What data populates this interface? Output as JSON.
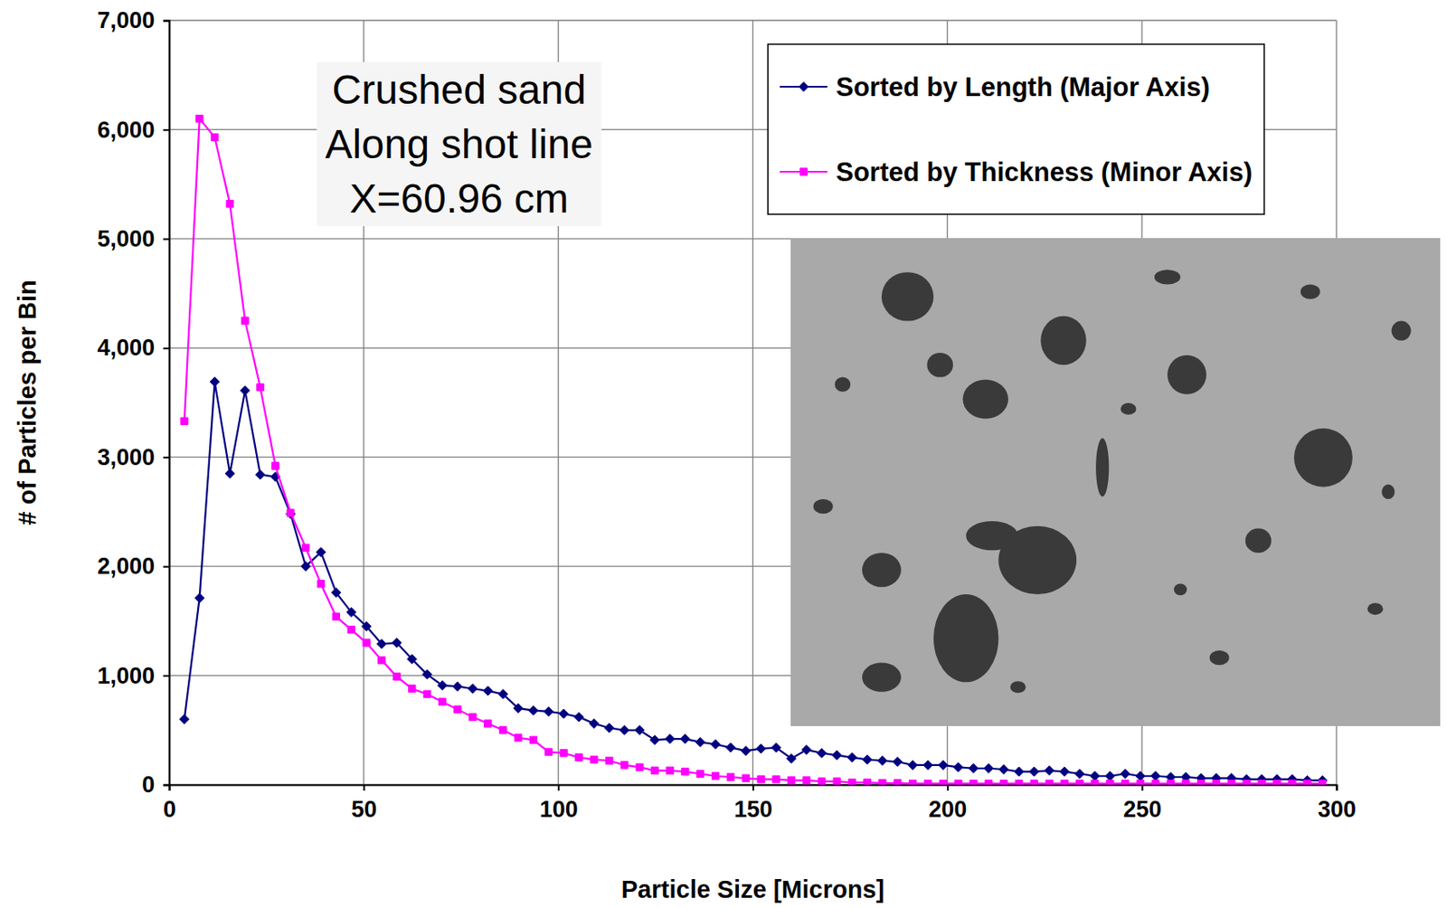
{
  "chart_data": {
    "type": "line",
    "x_label": "Particle Size [Microns]",
    "y_label": "# of Particles per Bin",
    "annotations": [
      "Crushed sand",
      "Along shot line",
      "X=60.96 cm"
    ],
    "x": [
      3.9,
      7.8,
      11.7,
      15.6,
      19.5,
      23.4,
      27.3,
      31.2,
      35.1,
      39,
      42.9,
      46.8,
      50.7,
      54.6,
      58.5,
      62.4,
      66.3,
      70.2,
      74.1,
      78,
      81.9,
      85.8,
      89.7,
      93.6,
      97.5,
      101.4,
      105.3,
      109.2,
      113.1,
      117,
      120.9,
      124.8,
      128.7,
      132.6,
      136.5,
      140.4,
      144.3,
      148.2,
      152.1,
      156,
      159.9,
      163.8,
      167.7,
      171.6,
      175.5,
      179.4,
      183.3,
      187.2,
      191.1,
      195,
      198.9,
      202.8,
      206.7,
      210.6,
      214.5,
      218.4,
      222.3,
      226.2,
      230.1,
      234,
      237.9,
      241.8,
      245.7,
      249.6,
      253.5,
      257.4,
      261.3,
      265.2,
      269.1,
      273,
      276.9,
      280.8,
      284.7,
      288.6,
      292.5,
      296.4
    ],
    "series": [
      {
        "name": "Sorted by Length (Major Axis)",
        "color": "#000080",
        "marker": "diamond",
        "line_style": "solid",
        "values": [
          600,
          1710,
          3690,
          2850,
          3610,
          2840,
          2820,
          2480,
          2000,
          2130,
          1760,
          1580,
          1450,
          1290,
          1300,
          1150,
          1010,
          910,
          900,
          880,
          860,
          830,
          700,
          680,
          670,
          650,
          620,
          560,
          520,
          500,
          500,
          410,
          420,
          420,
          390,
          370,
          340,
          310,
          330,
          340,
          240,
          320,
          290,
          270,
          250,
          230,
          220,
          210,
          180,
          180,
          180,
          160,
          150,
          150,
          140,
          120,
          120,
          130,
          120,
          100,
          80,
          80,
          100,
          80,
          80,
          70,
          70,
          60,
          60,
          60,
          50,
          50,
          50,
          50,
          40,
          40
        ]
      },
      {
        "name": "Sorted by Thickness (Minor Axis)",
        "color": "#ff00ff",
        "marker": "square",
        "line_style": "solid",
        "values": [
          3330,
          6100,
          5930,
          5320,
          4250,
          3640,
          2920,
          2490,
          2170,
          1840,
          1540,
          1420,
          1300,
          1140,
          990,
          880,
          830,
          760,
          690,
          620,
          560,
          500,
          430,
          410,
          300,
          290,
          250,
          230,
          220,
          180,
          160,
          130,
          130,
          120,
          100,
          80,
          70,
          60,
          50,
          50,
          40,
          40,
          30,
          30,
          20,
          20,
          15,
          15,
          10,
          10,
          10,
          10,
          10,
          10,
          10,
          10,
          10,
          10,
          10,
          10,
          10,
          10,
          10,
          10,
          10,
          10,
          10,
          10,
          10,
          10,
          10,
          10,
          10,
          10,
          10,
          10
        ]
      }
    ],
    "xlim": [
      0,
      300
    ],
    "xticks": [
      0,
      50,
      100,
      150,
      200,
      250,
      300
    ],
    "ylim": [
      0,
      7000
    ],
    "yticks": [
      0,
      {
        "value": 1000,
        "label": "1,000"
      },
      {
        "value": 2000,
        "label": "2,000"
      },
      {
        "value": 3000,
        "label": "3,000"
      },
      {
        "value": 4000,
        "label": "4,000"
      },
      {
        "value": 5000,
        "label": "5,000"
      },
      {
        "value": 6000,
        "label": "6,000"
      },
      {
        "value": 7000,
        "label": "7,000"
      }
    ],
    "grid": true,
    "legend": "upper right"
  }
}
